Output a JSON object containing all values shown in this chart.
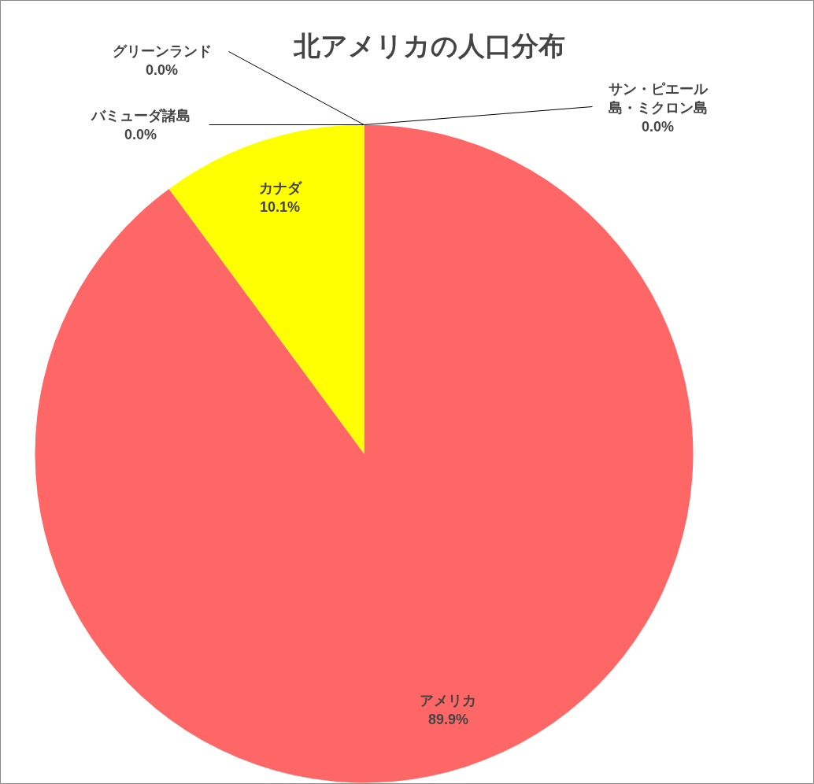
{
  "chart_data": {
    "type": "pie",
    "title": "北アメリカの人口分布",
    "categories": [
      "アメリカ",
      "カナダ",
      "バミューダ諸島",
      "グリーンランド",
      "サン・ピエール島・ミクロン島"
    ],
    "values": [
      89.9,
      10.1,
      0.0,
      0.0,
      0.0
    ],
    "value_labels": [
      "89.9%",
      "10.1%",
      "0.0%",
      "0.0%",
      "0.0%"
    ],
    "colors": [
      "#ff6666",
      "#ffff00",
      "#4f81bd",
      "#9bbb59",
      "#8064a2"
    ]
  }
}
